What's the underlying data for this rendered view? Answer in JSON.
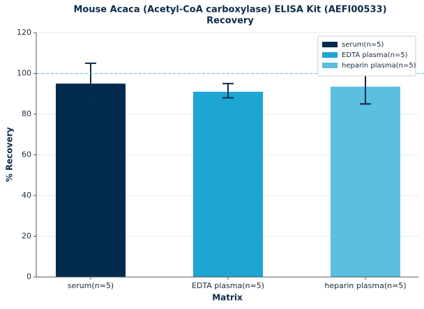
{
  "chart_data": {
    "type": "bar",
    "title": "Mouse Acaca (Acetyl-CoA carboxylase) ELISA Kit (AEFI00533)",
    "subtitle": "Recovery",
    "x_label": "Matrix",
    "y_label": "% Recovery",
    "categories": [
      "serum(n=5)",
      "EDTA plasma(n=5)",
      "heparin plasma(n=5)"
    ],
    "values": [
      95,
      91,
      93.5
    ],
    "error_low": [
      10,
      3,
      8.5
    ],
    "error_high": [
      10,
      4,
      5.5
    ],
    "colors": [
      "#002b4d",
      "#1da5d4",
      "#5bbfe0"
    ],
    "reference_line": 100,
    "ylim": [
      0,
      120
    ],
    "yticks": [
      0,
      20,
      40,
      60,
      80,
      100,
      120
    ],
    "grid": true,
    "legend": "upper right"
  }
}
